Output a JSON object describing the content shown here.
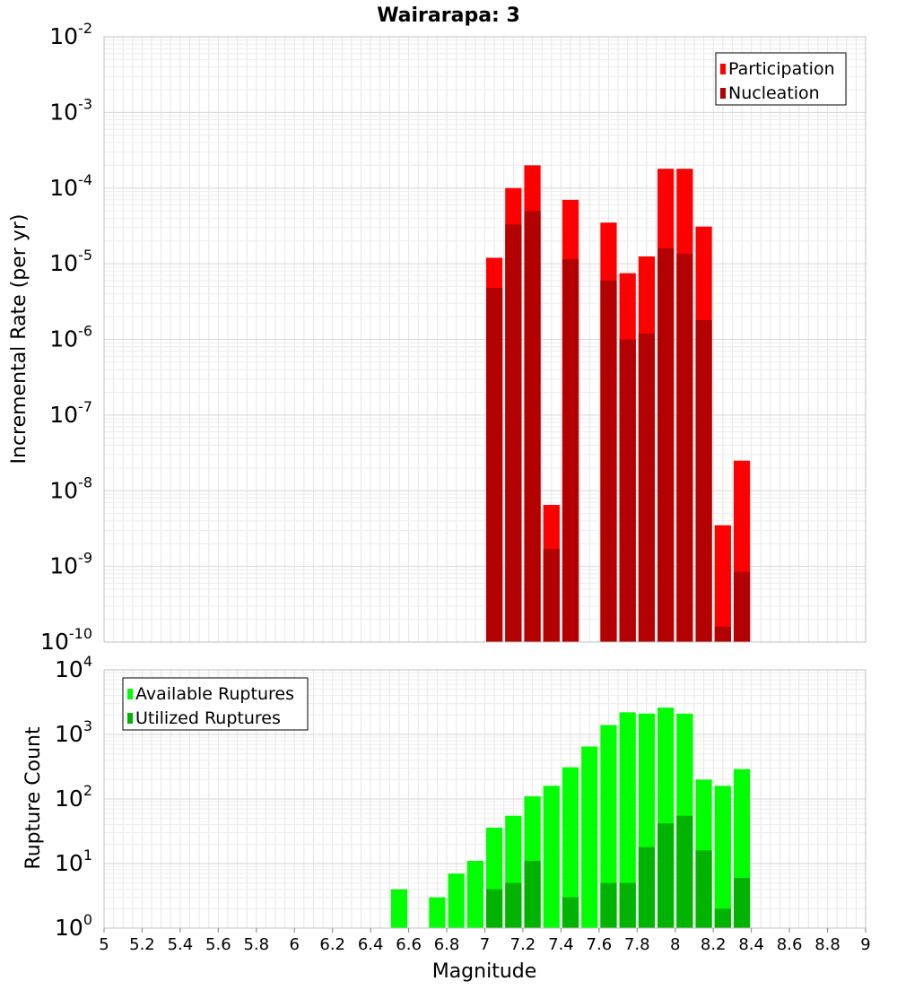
{
  "chart_data": [
    {
      "type": "bar",
      "title": "Wairarapa: 3",
      "xlabel": "",
      "ylabel": "Incremental Rate (per yr)",
      "yscale": "log",
      "ylim_exp": [
        -10,
        -2
      ],
      "xlim": [
        5,
        9
      ],
      "bin_width": 0.1,
      "grid": true,
      "legend_position": "top-right",
      "series": [
        {
          "name": "Participation",
          "color": "#ff0000",
          "x": [
            7.05,
            7.15,
            7.25,
            7.35,
            7.45,
            7.65,
            7.75,
            7.85,
            7.95,
            8.05,
            8.15,
            8.25,
            8.35
          ],
          "values": [
            1.2e-05,
            0.0001,
            0.0002,
            6.5e-09,
            7e-05,
            3.5e-05,
            7.5e-06,
            1.25e-05,
            0.00018,
            0.00018,
            3.1e-05,
            3.5e-09,
            2.5e-08
          ]
        },
        {
          "name": "Nucleation",
          "color": "#b30000",
          "x": [
            7.05,
            7.15,
            7.25,
            7.35,
            7.45,
            7.65,
            7.75,
            7.85,
            7.95,
            8.05,
            8.15,
            8.25,
            8.35
          ],
          "values": [
            4.8e-06,
            3.3e-05,
            5e-05,
            1.7e-09,
            1.15e-05,
            6e-06,
            1e-06,
            1.2e-06,
            1.6e-05,
            1.35e-05,
            1.8e-06,
            1.6e-10,
            8.5e-10
          ]
        }
      ]
    },
    {
      "type": "bar",
      "title": "",
      "xlabel": "Magnitude",
      "ylabel": "Rupture Count",
      "yscale": "log",
      "ylim_exp": [
        0,
        4
      ],
      "xlim": [
        5,
        9
      ],
      "xticks": [
        "5",
        "5.2",
        "5.4",
        "5.6",
        "5.8",
        "6",
        "6.2",
        "6.4",
        "6.6",
        "6.8",
        "7",
        "7.2",
        "7.4",
        "7.6",
        "7.8",
        "8",
        "8.2",
        "8.4",
        "8.6",
        "8.8",
        "9"
      ],
      "bin_width": 0.1,
      "grid": true,
      "legend_position": "top-left",
      "series": [
        {
          "name": "Available Ruptures",
          "color": "#00ff00",
          "x": [
            6.55,
            6.75,
            6.85,
            6.95,
            7.05,
            7.15,
            7.25,
            7.35,
            7.45,
            7.55,
            7.65,
            7.75,
            7.85,
            7.95,
            8.05,
            8.15,
            8.25,
            8.35,
            8.45
          ],
          "values": [
            4,
            3,
            7,
            11,
            36,
            55,
            110,
            160,
            310,
            650,
            1400,
            2200,
            2100,
            2600,
            2100,
            200,
            160,
            290,
            1
          ]
        },
        {
          "name": "Utilized Ruptures",
          "color": "#00b300",
          "x": [
            7.05,
            7.15,
            7.25,
            7.35,
            7.45,
            7.65,
            7.75,
            7.85,
            7.95,
            8.05,
            8.15,
            8.25,
            8.35
          ],
          "values": [
            4,
            5,
            11,
            1,
            3,
            5,
            5,
            18,
            42,
            55,
            16,
            2,
            6
          ]
        }
      ]
    }
  ]
}
